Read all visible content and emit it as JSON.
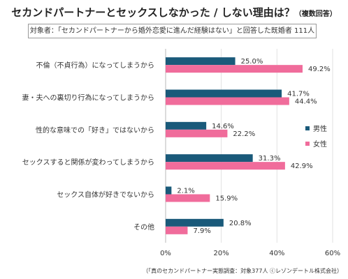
{
  "title": "セカンドパートナーとセックスしなかった / しない理由は？",
  "title_note": "（複数回答）",
  "subtitle": "対象者：「セカンドパートナーから婚外恋愛に進んだ経験はない」と回答した既婚者 111人",
  "footer": "（「真のセカンドパートナー実態調査：対象377人 ⓒレゾンデートル株式会社）",
  "colors": {
    "male": "#1a5a7a",
    "female": "#f06c9b",
    "axis": "#b8b8b8",
    "text": "#333333"
  },
  "chart_data": {
    "type": "bar",
    "orientation": "horizontal",
    "categories": [
      "不倫（不貞行為）になってしまうから",
      "妻・夫への裏切り行為になってしまうから",
      "性的な意味での「好き」ではないから",
      "セックスすると関係が変わってしまうから",
      "セックス自体が好きでないから",
      "その他"
    ],
    "series": [
      {
        "name": "男性",
        "values": [
          25.0,
          41.7,
          14.6,
          31.3,
          2.1,
          20.8
        ],
        "labels": [
          "25.0%",
          "41.7%",
          "14.6%",
          "31.3%",
          "2.1%",
          "20.8%"
        ]
      },
      {
        "name": "女性",
        "values": [
          49.2,
          44.4,
          22.2,
          42.9,
          15.9,
          7.9
        ],
        "labels": [
          "49.2%",
          "44.4%",
          "22.2%",
          "42.9%",
          "15.9%",
          "7.9%"
        ]
      }
    ],
    "xlim": [
      0,
      60
    ],
    "xticks": [
      "0%",
      "20%",
      "40%",
      "60%"
    ],
    "grid": true,
    "legend_position": "right"
  }
}
